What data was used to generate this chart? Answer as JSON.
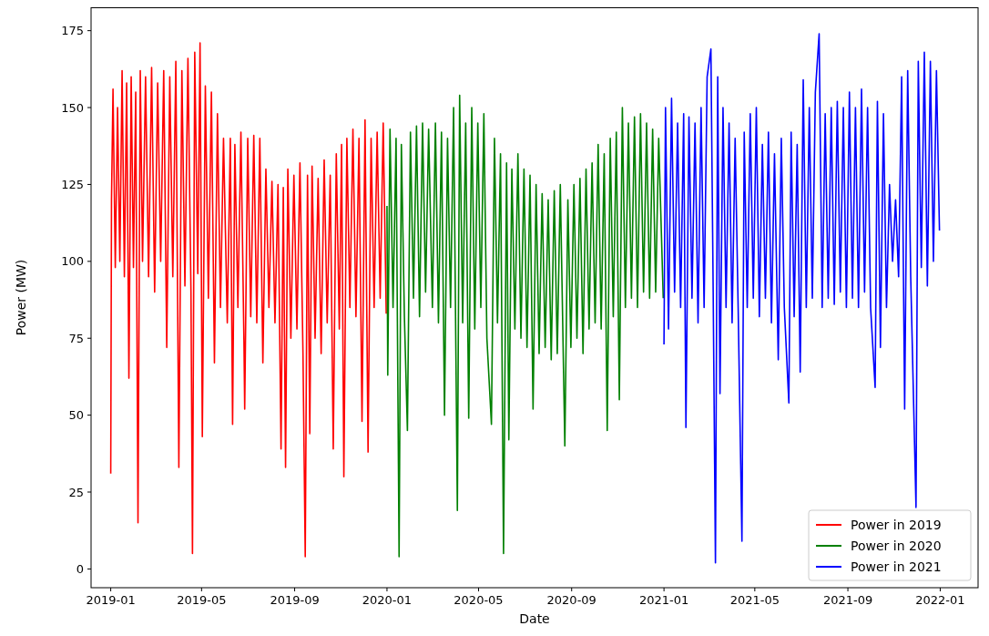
{
  "chart_data": {
    "type": "line",
    "xlabel": "Date",
    "ylabel": "Power (MW)",
    "xlim": [
      "2018-12-06",
      "2022-02-20"
    ],
    "ylim": [
      -6.1,
      182.6
    ],
    "xticks": [
      "2019-01",
      "2019-05",
      "2019-09",
      "2020-01",
      "2020-05",
      "2020-09",
      "2021-01",
      "2021-05",
      "2021-09",
      "2022-01"
    ],
    "yticks": [
      0,
      25,
      50,
      75,
      100,
      125,
      150,
      175
    ],
    "grid": false,
    "legend": "bottom right",
    "line_style": "solid",
    "series": [
      {
        "name": "Power in 2019",
        "color": "#ff0000",
        "x": [
          "2019-01-01",
          "2019-01-02",
          "2019-01-04",
          "2019-01-07",
          "2019-01-10",
          "2019-01-13",
          "2019-01-16",
          "2019-01-19",
          "2019-01-22",
          "2019-01-25",
          "2019-01-28",
          "2019-01-31",
          "2019-02-03",
          "2019-02-06",
          "2019-02-09",
          "2019-02-12",
          "2019-02-16",
          "2019-02-20",
          "2019-02-24",
          "2019-02-28",
          "2019-03-04",
          "2019-03-08",
          "2019-03-12",
          "2019-03-16",
          "2019-03-20",
          "2019-03-24",
          "2019-03-28",
          "2019-04-01",
          "2019-04-05",
          "2019-04-09",
          "2019-04-13",
          "2019-04-17",
          "2019-04-19",
          "2019-04-22",
          "2019-04-26",
          "2019-04-29",
          "2019-05-02",
          "2019-05-06",
          "2019-05-10",
          "2019-05-14",
          "2019-05-18",
          "2019-05-22",
          "2019-05-26",
          "2019-05-30",
          "2019-06-04",
          "2019-06-08",
          "2019-06-11",
          "2019-06-14",
          "2019-06-18",
          "2019-06-22",
          "2019-06-26",
          "2019-06-27",
          "2019-07-01",
          "2019-07-05",
          "2019-07-09",
          "2019-07-13",
          "2019-07-17",
          "2019-07-21",
          "2019-07-25",
          "2019-07-29",
          "2019-08-02",
          "2019-08-06",
          "2019-08-10",
          "2019-08-14",
          "2019-08-17",
          "2019-08-20",
          "2019-08-23",
          "2019-08-27",
          "2019-08-31",
          "2019-09-04",
          "2019-09-08",
          "2019-09-12",
          "2019-09-15",
          "2019-09-18",
          "2019-09-21",
          "2019-09-24",
          "2019-09-28",
          "2019-10-02",
          "2019-10-06",
          "2019-10-10",
          "2019-10-14",
          "2019-10-18",
          "2019-10-22",
          "2019-10-26",
          "2019-10-30",
          "2019-11-02",
          "2019-11-05",
          "2019-11-09",
          "2019-11-13",
          "2019-11-17",
          "2019-11-21",
          "2019-11-25",
          "2019-11-29",
          "2019-12-03",
          "2019-12-07",
          "2019-12-11",
          "2019-12-15",
          "2019-12-19",
          "2019-12-23",
          "2019-12-27",
          "2019-12-31"
        ],
        "values": [
          31,
          120,
          156,
          98,
          150,
          100,
          162,
          95,
          158,
          62,
          160,
          98,
          155,
          15,
          162,
          100,
          160,
          95,
          163,
          90,
          158,
          100,
          162,
          72,
          160,
          95,
          165,
          33,
          162,
          92,
          166,
          90,
          5,
          168,
          96,
          171,
          43,
          157,
          88,
          155,
          67,
          148,
          85,
          140,
          80,
          140,
          47,
          138,
          85,
          142,
          74,
          52,
          140,
          82,
          141,
          80,
          140,
          67,
          130,
          85,
          126,
          80,
          125,
          39,
          124,
          33,
          130,
          75,
          128,
          78,
          132,
          70,
          4,
          128,
          44,
          131,
          75,
          127,
          70,
          133,
          80,
          128,
          39,
          135,
          78,
          138,
          30,
          140,
          85,
          143,
          82,
          140,
          48,
          146,
          38,
          140,
          85,
          142,
          88,
          145,
          83
        ]
      },
      {
        "name": "Power in 2020",
        "color": "#008000",
        "x": [
          "2020-01-01",
          "2020-01-02",
          "2020-01-05",
          "2020-01-09",
          "2020-01-13",
          "2020-01-17",
          "2020-01-20",
          "2020-01-24",
          "2020-01-28",
          "2020-02-01",
          "2020-02-05",
          "2020-02-09",
          "2020-02-13",
          "2020-02-17",
          "2020-02-21",
          "2020-02-25",
          "2020-03-01",
          "2020-03-05",
          "2020-03-09",
          "2020-03-13",
          "2020-03-17",
          "2020-03-21",
          "2020-03-25",
          "2020-03-29",
          "2020-04-03",
          "2020-04-06",
          "2020-04-10",
          "2020-04-14",
          "2020-04-18",
          "2020-04-22",
          "2020-04-26",
          "2020-04-30",
          "2020-05-04",
          "2020-05-08",
          "2020-05-12",
          "2020-05-18",
          "2020-05-22",
          "2020-05-26",
          "2020-05-30",
          "2020-06-03",
          "2020-06-07",
          "2020-06-10",
          "2020-06-14",
          "2020-06-18",
          "2020-06-22",
          "2020-06-26",
          "2020-06-30",
          "2020-07-04",
          "2020-07-08",
          "2020-07-12",
          "2020-07-16",
          "2020-07-20",
          "2020-07-24",
          "2020-07-28",
          "2020-08-01",
          "2020-08-05",
          "2020-08-09",
          "2020-08-13",
          "2020-08-17",
          "2020-08-23",
          "2020-08-27",
          "2020-08-31",
          "2020-09-04",
          "2020-09-08",
          "2020-09-12",
          "2020-09-16",
          "2020-09-20",
          "2020-09-24",
          "2020-09-28",
          "2020-10-02",
          "2020-10-06",
          "2020-10-10",
          "2020-10-14",
          "2020-10-18",
          "2020-10-22",
          "2020-10-26",
          "2020-10-30",
          "2020-11-03",
          "2020-11-07",
          "2020-11-11",
          "2020-11-15",
          "2020-11-19",
          "2020-11-23",
          "2020-11-27",
          "2020-12-01",
          "2020-12-05",
          "2020-12-09",
          "2020-12-13",
          "2020-12-17",
          "2020-12-21",
          "2020-12-25",
          "2020-12-31"
        ],
        "values": [
          118,
          63,
          143,
          85,
          140,
          4,
          138,
          82,
          45,
          142,
          88,
          144,
          82,
          145,
          90,
          143,
          85,
          145,
          80,
          142,
          50,
          140,
          85,
          150,
          19,
          154,
          80,
          145,
          49,
          150,
          78,
          145,
          85,
          148,
          75,
          47,
          140,
          80,
          135,
          5,
          132,
          42,
          130,
          78,
          135,
          75,
          130,
          72,
          128,
          52,
          125,
          70,
          122,
          72,
          120,
          68,
          123,
          70,
          125,
          40,
          120,
          72,
          125,
          75,
          127,
          70,
          130,
          78,
          132,
          80,
          138,
          78,
          135,
          45,
          140,
          82,
          142,
          55,
          150,
          85,
          145,
          88,
          147,
          85,
          148,
          90,
          145,
          88,
          143,
          90,
          140,
          88
        ]
      },
      {
        "name": "Power in 2021",
        "color": "#0000ff",
        "x": [
          "2021-01-01",
          "2021-01-03",
          "2021-01-07",
          "2021-01-11",
          "2021-01-15",
          "2021-01-19",
          "2021-01-23",
          "2021-01-27",
          "2021-01-30",
          "2021-02-03",
          "2021-02-07",
          "2021-02-11",
          "2021-02-15",
          "2021-02-19",
          "2021-02-23",
          "2021-02-27",
          "2021-03-04",
          "2021-03-07",
          "2021-03-10",
          "2021-03-13",
          "2021-03-16",
          "2021-03-20",
          "2021-03-24",
          "2021-03-28",
          "2021-04-01",
          "2021-04-05",
          "2021-04-09",
          "2021-04-14",
          "2021-04-17",
          "2021-04-21",
          "2021-04-25",
          "2021-04-29",
          "2021-05-03",
          "2021-05-07",
          "2021-05-11",
          "2021-05-15",
          "2021-05-19",
          "2021-05-23",
          "2021-05-27",
          "2021-06-01",
          "2021-06-05",
          "2021-06-09",
          "2021-06-15",
          "2021-06-18",
          "2021-06-22",
          "2021-06-26",
          "2021-06-30",
          "2021-07-04",
          "2021-07-08",
          "2021-07-12",
          "2021-07-16",
          "2021-07-20",
          "2021-07-25",
          "2021-07-29",
          "2021-08-02",
          "2021-08-06",
          "2021-08-10",
          "2021-08-14",
          "2021-08-18",
          "2021-08-22",
          "2021-08-26",
          "2021-08-30",
          "2021-09-03",
          "2021-09-07",
          "2021-09-11",
          "2021-09-15",
          "2021-09-19",
          "2021-09-23",
          "2021-09-27",
          "2021-10-01",
          "2021-10-07",
          "2021-10-10",
          "2021-10-14",
          "2021-10-18",
          "2021-10-22",
          "2021-10-26",
          "2021-10-30",
          "2021-11-03",
          "2021-11-07",
          "2021-11-11",
          "2021-11-15",
          "2021-11-19",
          "2021-11-23",
          "2021-11-30",
          "2021-12-03",
          "2021-12-07",
          "2021-12-11",
          "2021-12-15",
          "2021-12-19",
          "2021-12-23",
          "2021-12-27",
          "2021-12-31"
        ],
        "values": [
          73,
          150,
          78,
          153,
          90,
          145,
          85,
          148,
          46,
          147,
          88,
          145,
          80,
          150,
          85,
          160,
          169,
          90,
          2,
          160,
          57,
          150,
          85,
          145,
          80,
          140,
          85,
          9,
          142,
          85,
          148,
          88,
          150,
          82,
          138,
          88,
          142,
          80,
          135,
          68,
          140,
          85,
          54,
          142,
          82,
          138,
          64,
          159,
          85,
          150,
          88,
          155,
          174,
          85,
          148,
          88,
          150,
          86,
          152,
          90,
          150,
          85,
          155,
          88,
          150,
          85,
          156,
          90,
          150,
          85,
          59,
          152,
          72,
          148,
          85,
          125,
          100,
          120,
          95,
          160,
          52,
          162,
          95,
          20,
          165,
          98,
          168,
          92,
          165,
          100,
          162,
          110
        ]
      }
    ]
  }
}
